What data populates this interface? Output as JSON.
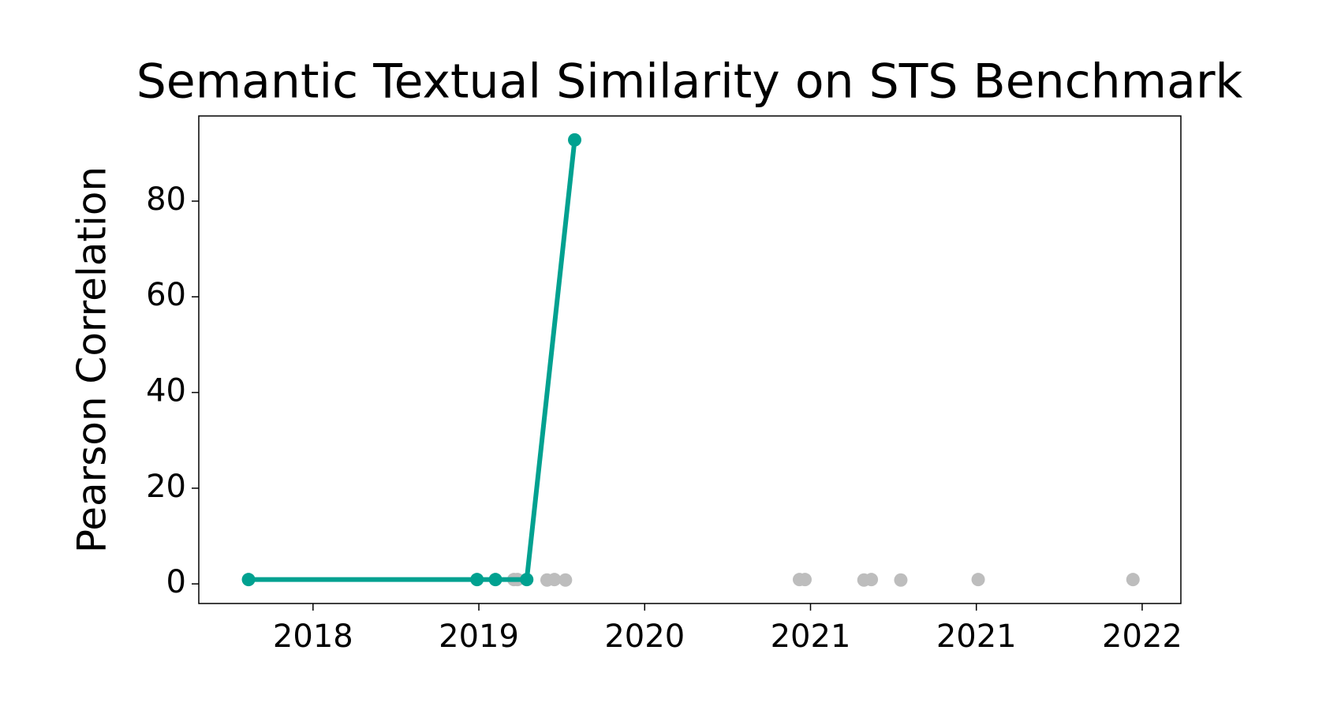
{
  "chart_data": {
    "type": "line",
    "title": "Semantic Textual Similarity on STS Benchmark",
    "ylabel": "Pearson Correlation",
    "xlim": [
      2017.68,
      2023.01
    ],
    "xticks": [
      {
        "value": 2018.3,
        "label": "2018"
      },
      {
        "value": 2019.2,
        "label": "2019"
      },
      {
        "value": 2020.1,
        "label": "2020"
      },
      {
        "value": 2021.0,
        "label": "2021"
      },
      {
        "value": 2021.9,
        "label": "2021"
      },
      {
        "value": 2022.8,
        "label": "2022"
      }
    ],
    "ylim": [
      -4.1,
      97.8
    ],
    "yticks": [
      0,
      20,
      40,
      60,
      80
    ],
    "grid": false,
    "series": [
      {
        "color": "#bdbdbd",
        "line": false,
        "x": [
          2019.39,
          2019.41,
          2019.57,
          2019.61,
          2019.67,
          2020.94,
          2020.97,
          2021.29,
          2021.33,
          2021.49,
          2021.91,
          2022.75
        ],
        "values": [
          0.9,
          0.9,
          0.8,
          0.9,
          0.8,
          0.9,
          0.9,
          0.8,
          0.9,
          0.8,
          0.9,
          0.9
        ]
      },
      {
        "color": "#00a190",
        "line": true,
        "x": [
          2017.95,
          2019.19,
          2019.29,
          2019.46,
          2019.72
        ],
        "values": [
          0.9,
          0.9,
          0.9,
          0.9,
          92.8
        ]
      }
    ]
  }
}
